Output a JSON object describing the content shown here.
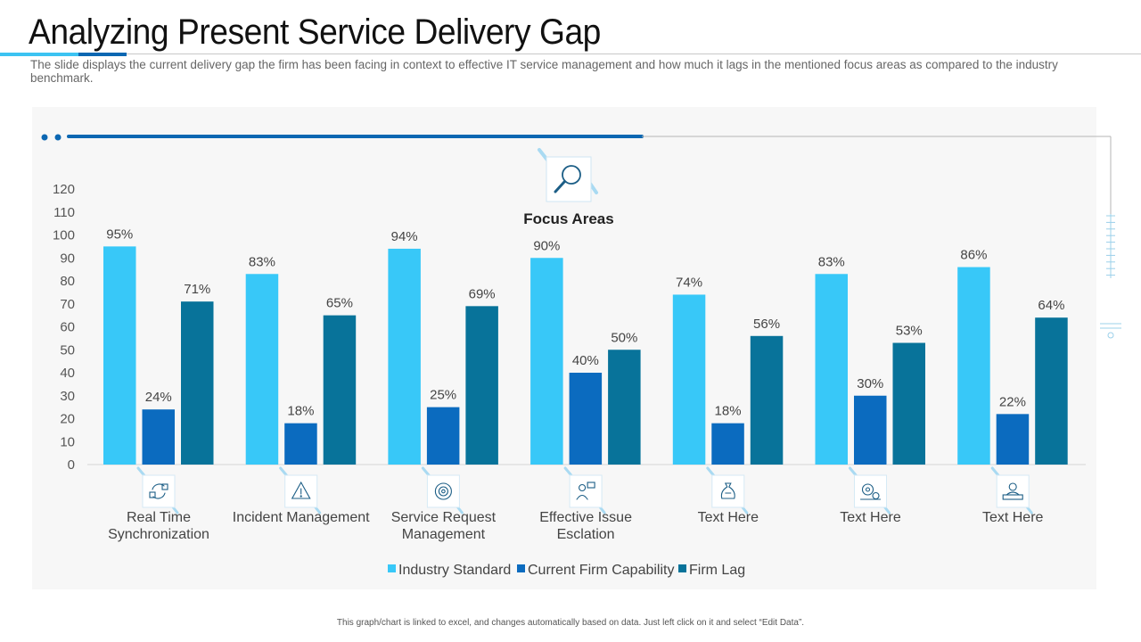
{
  "page": {
    "title": "Analyzing Present Service Delivery Gap",
    "subtitle": "The slide displays the current delivery gap the firm has been facing in context to effective IT service management and how much it lags in the mentioned focus areas as compared to the industry benchmark.",
    "footnote": "This graph/chart is linked to excel, and changes automatically based on data. Just left click on it and select “Edit Data”.",
    "focus_label": "Focus Areas"
  },
  "colors": {
    "industry_standard": "#38C8F8",
    "current_firm_capability": "#0B6BBF",
    "firm_lag": "#08739A",
    "accent_line": "#0B67B2",
    "icon_stroke": "#1C5E86"
  },
  "icons": [
    "sync-icon",
    "warning-icon",
    "service-request-icon",
    "issue-escalation-icon",
    "money-bag-icon",
    "gears-icon",
    "person-desk-icon",
    "magnifier-icon"
  ],
  "chart_data": {
    "type": "bar",
    "categories": [
      "Real Time Synchronization",
      "Incident Management",
      "Service Request Management",
      "Effective Issue Esclation",
      "Text Here",
      "Text Here",
      "Text Here"
    ],
    "category_lines": [
      [
        "Real Time",
        "Synchronization"
      ],
      [
        "Incident Management"
      ],
      [
        "Service Request",
        "Management"
      ],
      [
        "Effective Issue",
        "Esclation"
      ],
      [
        "Text Here"
      ],
      [
        "Text Here"
      ],
      [
        "Text Here"
      ]
    ],
    "series": [
      {
        "name": "Industry Standard",
        "values": [
          95,
          83,
          94,
          90,
          74,
          83,
          86
        ],
        "labels": [
          "95%",
          "83%",
          "94%",
          "90%",
          "74%",
          "83%",
          "86%"
        ]
      },
      {
        "name": "Current Firm Capability",
        "values": [
          24,
          18,
          25,
          40,
          18,
          30,
          22
        ],
        "labels": [
          "24%",
          "18%",
          "25%",
          "40%",
          "18%",
          "30%",
          "22%"
        ]
      },
      {
        "name": "Firm Lag",
        "values": [
          71,
          65,
          69,
          50,
          56,
          53,
          64
        ],
        "labels": [
          "71%",
          "65%",
          "69%",
          "50%",
          "56%",
          "53%",
          "64%"
        ]
      }
    ],
    "yticks": [
      "0",
      "10",
      "20",
      "30",
      "40",
      "50",
      "60",
      "70",
      "80",
      "90",
      "100",
      "110",
      "120"
    ],
    "ylim": [
      0,
      120
    ],
    "legend": "bottom",
    "grid": false
  }
}
